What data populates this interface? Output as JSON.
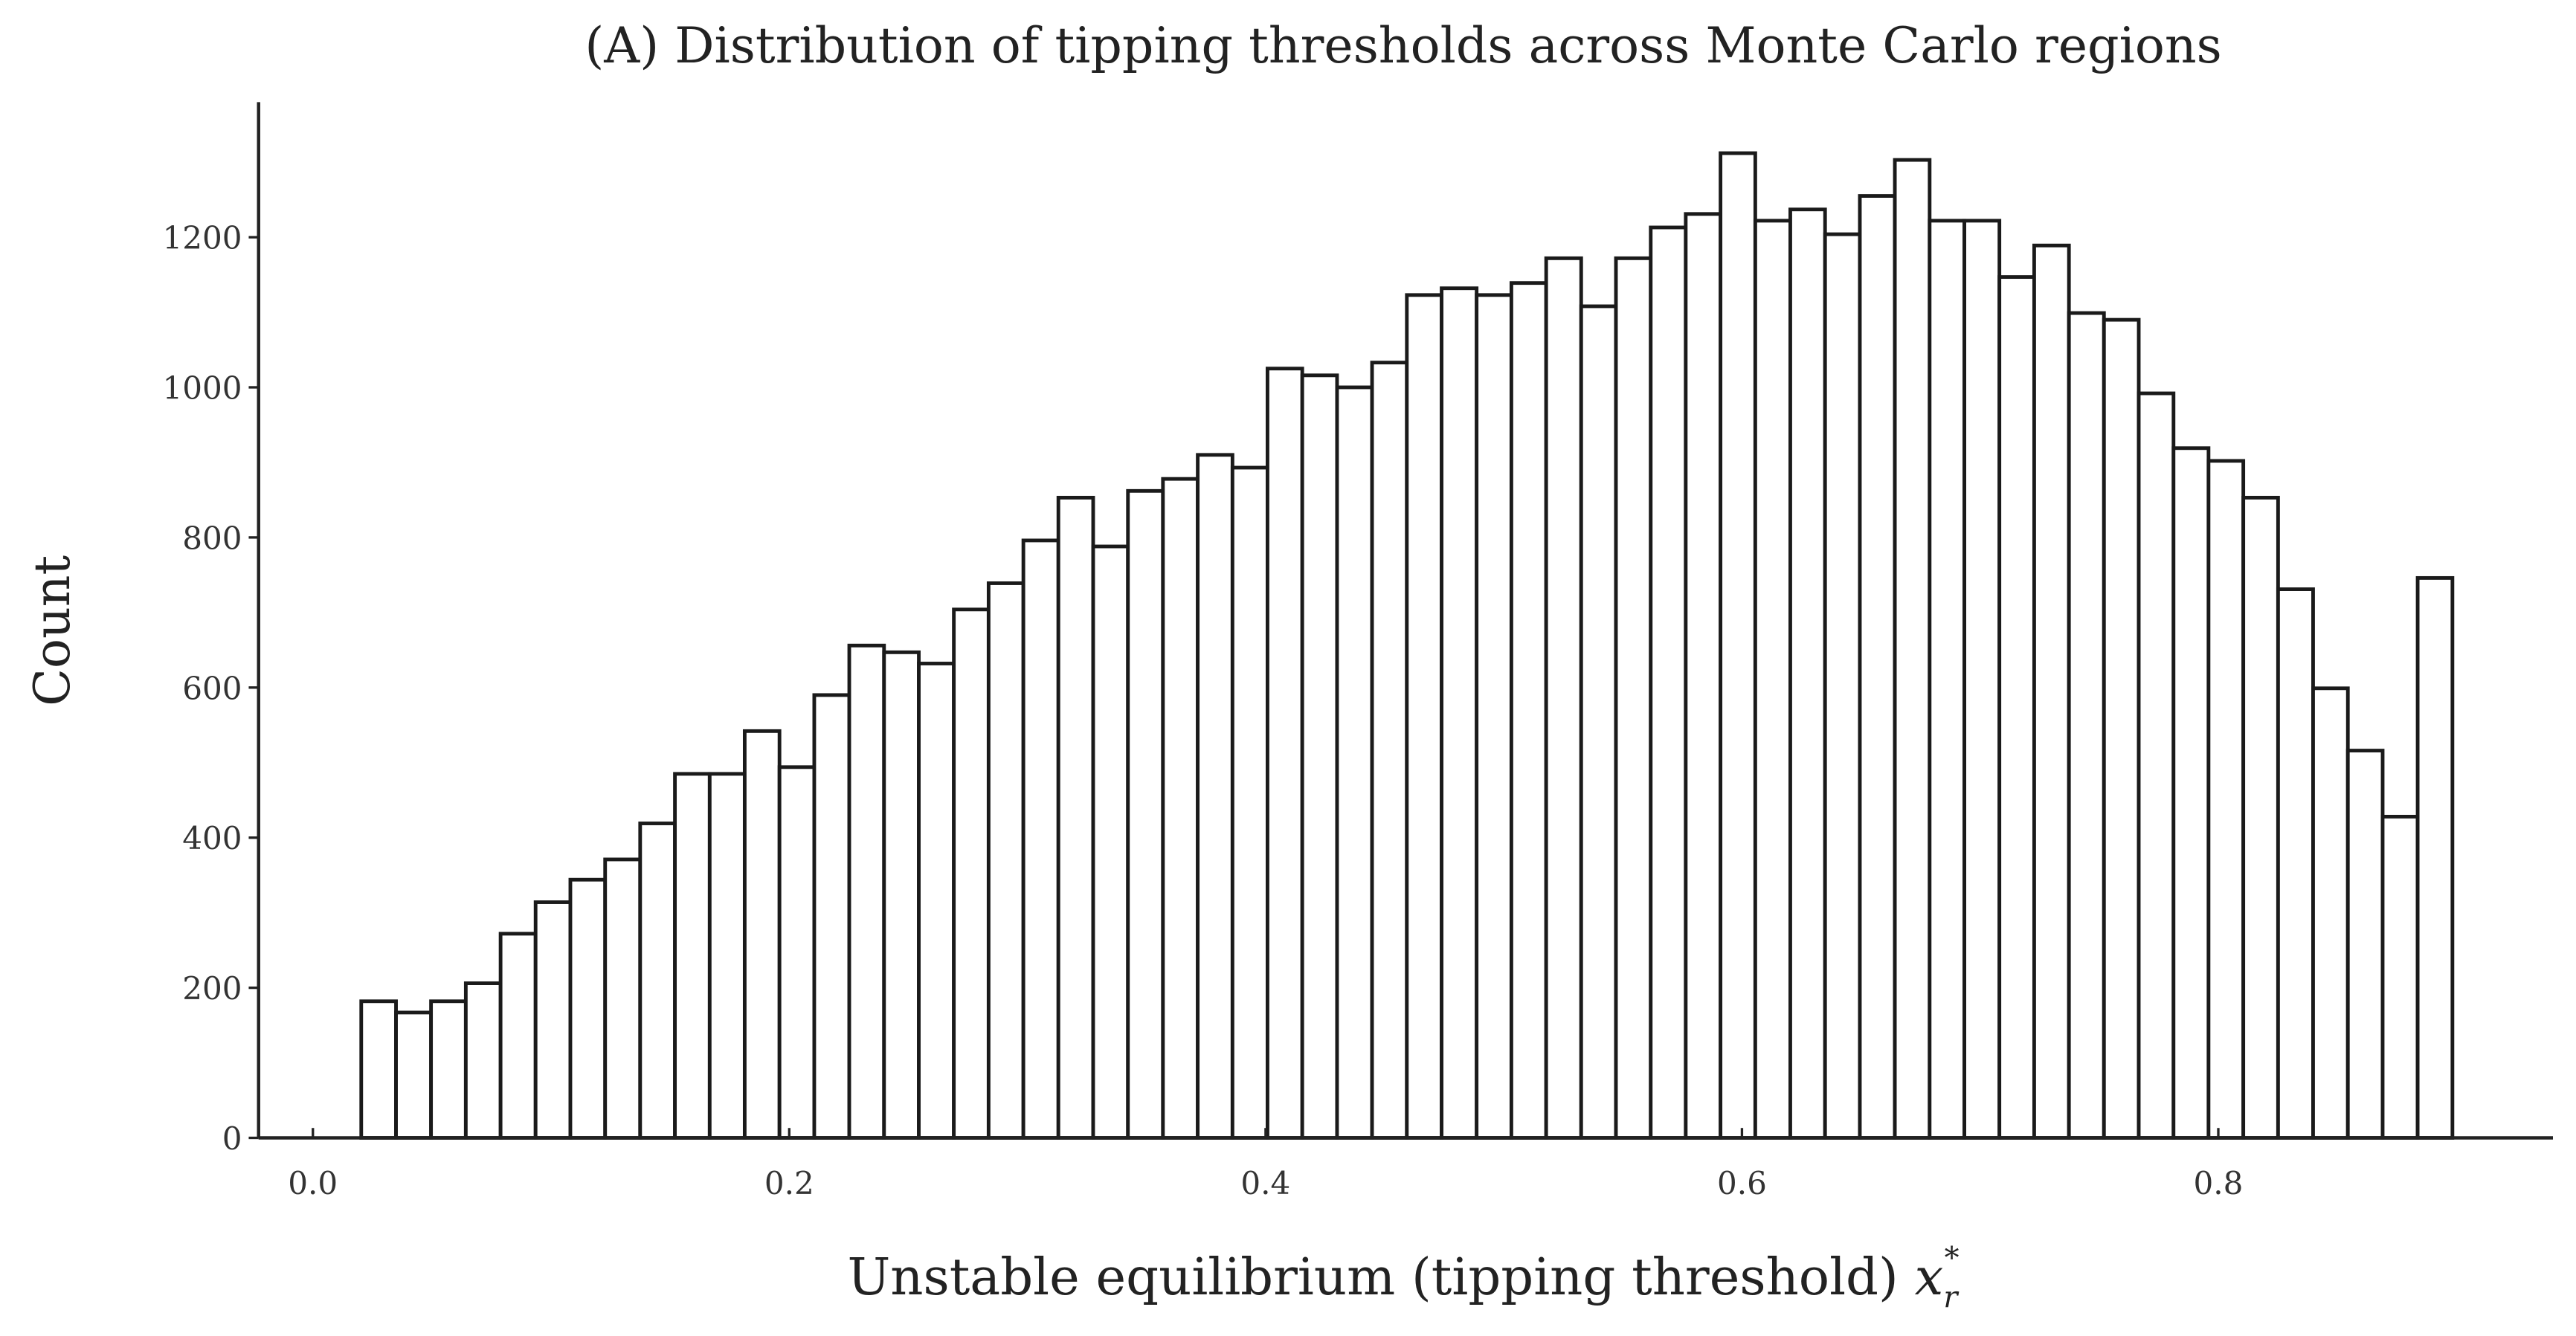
{
  "chart_data": {
    "type": "histogram",
    "title": "(A) Distribution of tipping thresholds across Monte Carlo regions",
    "xlabel": "Unstable equilibrium (tipping threshold)",
    "xlabel_symbol": {
      "base": "x",
      "sub": "r",
      "sup": "*"
    },
    "ylabel": "Count",
    "bins": [
      0.0203,
      0.0349,
      0.0496,
      0.0642,
      0.0788,
      0.0935,
      0.1081,
      0.1227,
      0.1374,
      0.152,
      0.1666,
      0.1813,
      0.1959,
      0.2105,
      0.2252,
      0.2398,
      0.2544,
      0.2691,
      0.2837,
      0.2983,
      0.313,
      0.3276,
      0.3422,
      0.3569,
      0.3715,
      0.3861,
      0.4008,
      0.4154,
      0.43,
      0.4447,
      0.4593,
      0.4739,
      0.4886,
      0.5032,
      0.5178,
      0.5325,
      0.5471,
      0.5617,
      0.5764,
      0.591,
      0.6056,
      0.6203,
      0.6349,
      0.6495,
      0.6642,
      0.6788,
      0.6934,
      0.7081,
      0.7227,
      0.7373,
      0.752,
      0.7666,
      0.7812,
      0.7959,
      0.8105,
      0.8251,
      0.8398,
      0.8544,
      0.869,
      0.8837,
      0.8983
    ],
    "values": [
      182,
      167,
      182,
      206,
      272,
      314,
      344,
      371,
      419,
      485,
      485,
      542,
      494,
      590,
      656,
      647,
      632,
      704,
      739,
      796,
      853,
      788,
      862,
      878,
      910,
      893,
      1025,
      1016,
      1000,
      1033,
      1123,
      1132,
      1123,
      1139,
      1172,
      1108,
      1172,
      1213,
      1231,
      1312,
      1222,
      1237,
      1204,
      1255,
      1303,
      1222,
      1222,
      1147,
      1189,
      1099,
      1090,
      992,
      919,
      902,
      853,
      731,
      599,
      516,
      428,
      746
    ],
    "color": "#ffffff",
    "edgecolor": "#1a1a1a",
    "xlim": [
      -0.0228,
      0.9405
    ],
    "ylim": [
      0,
      1380
    ],
    "xticks": [
      {
        "value": 0,
        "label": "0.0"
      },
      0.2,
      0.4,
      0.6,
      0.8
    ],
    "yticks": [
      0,
      200,
      400,
      600,
      800,
      1000,
      1200
    ],
    "grid": false
  }
}
